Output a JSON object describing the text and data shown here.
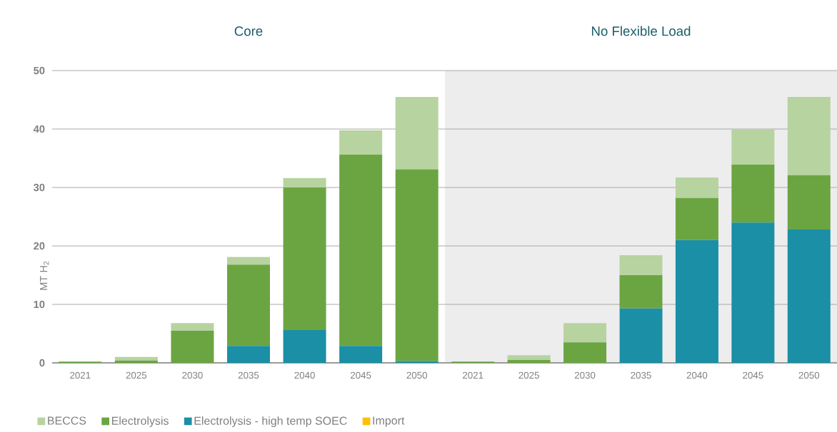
{
  "chart_data": [
    {
      "type": "bar",
      "title": "Core",
      "ylabel": "MT H$_{2}$",
      "stacked": true,
      "categories": [
        "2021",
        "2025",
        "2030",
        "2035",
        "2040",
        "2045",
        "2050"
      ],
      "series": [
        {
          "name": "Import",
          "color": "#ffc000",
          "values": [
            0,
            0,
            0,
            0,
            0,
            0,
            0
          ]
        },
        {
          "name": "Electrolysis - high temp SOEC",
          "color": "#1a8fa6",
          "values": [
            0,
            0,
            0,
            2.9,
            5.6,
            2.9,
            0.3
          ]
        },
        {
          "name": "Electrolysis",
          "color": "#6ba541",
          "values": [
            0.2,
            0.4,
            5.5,
            13.9,
            24.4,
            32.7,
            32.8
          ]
        },
        {
          "name": "BECCS",
          "color": "#b7d3a0",
          "values": [
            0,
            0.6,
            1.3,
            1.3,
            1.6,
            4.2,
            12.4
          ]
        }
      ],
      "ylim": [
        0,
        50
      ],
      "yticks": [
        0,
        10,
        20,
        30,
        40,
        50
      ],
      "grid": "y",
      "legend": "bottom"
    },
    {
      "type": "bar",
      "title": "No Flexible Load",
      "stacked": true,
      "categories": [
        "2021",
        "2025",
        "2030",
        "2035",
        "2040",
        "2045",
        "2050"
      ],
      "series": [
        {
          "color": "#ffc000",
          "values": [
            0,
            0,
            0,
            0,
            0,
            0,
            0
          ]
        },
        {
          "color": "#1a8fa6",
          "values": [
            0,
            0,
            0,
            9.3,
            21.0,
            24.0,
            22.8
          ]
        },
        {
          "color": "#6ba541",
          "values": [
            0.2,
            0.5,
            3.5,
            5.7,
            7.2,
            9.9,
            9.3
          ]
        },
        {
          "color": "#b7d3a0",
          "values": [
            0,
            0.8,
            3.3,
            3.4,
            3.5,
            6.0,
            13.4
          ]
        }
      ],
      "ylim": [
        0,
        50
      ],
      "yticks": [
        0,
        10,
        20,
        30,
        40,
        50
      ],
      "grid": "y",
      "tick_labels": "x"
    }
  ]
}
